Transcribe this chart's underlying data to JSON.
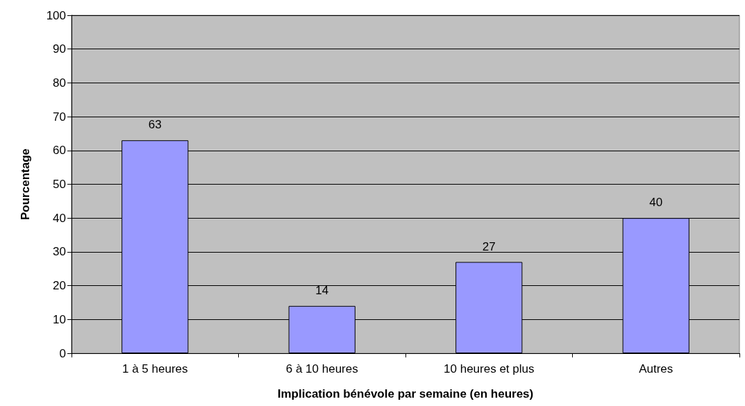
{
  "chart_data": {
    "type": "bar",
    "xlabel": "Implication bénévole par semaine (en heures)",
    "ylabel": "Pourcentage",
    "categories": [
      "1 à 5 heures",
      "6 à 10 heures",
      "10 heures et plus",
      "Autres"
    ],
    "values": [
      63,
      14,
      27,
      40
    ],
    "color": "#9999ff",
    "ylim": [
      0,
      100
    ],
    "yticks": [
      0,
      10,
      20,
      30,
      40,
      50,
      60,
      70,
      80,
      90,
      100
    ],
    "grid": "y",
    "data_labels": true
  }
}
